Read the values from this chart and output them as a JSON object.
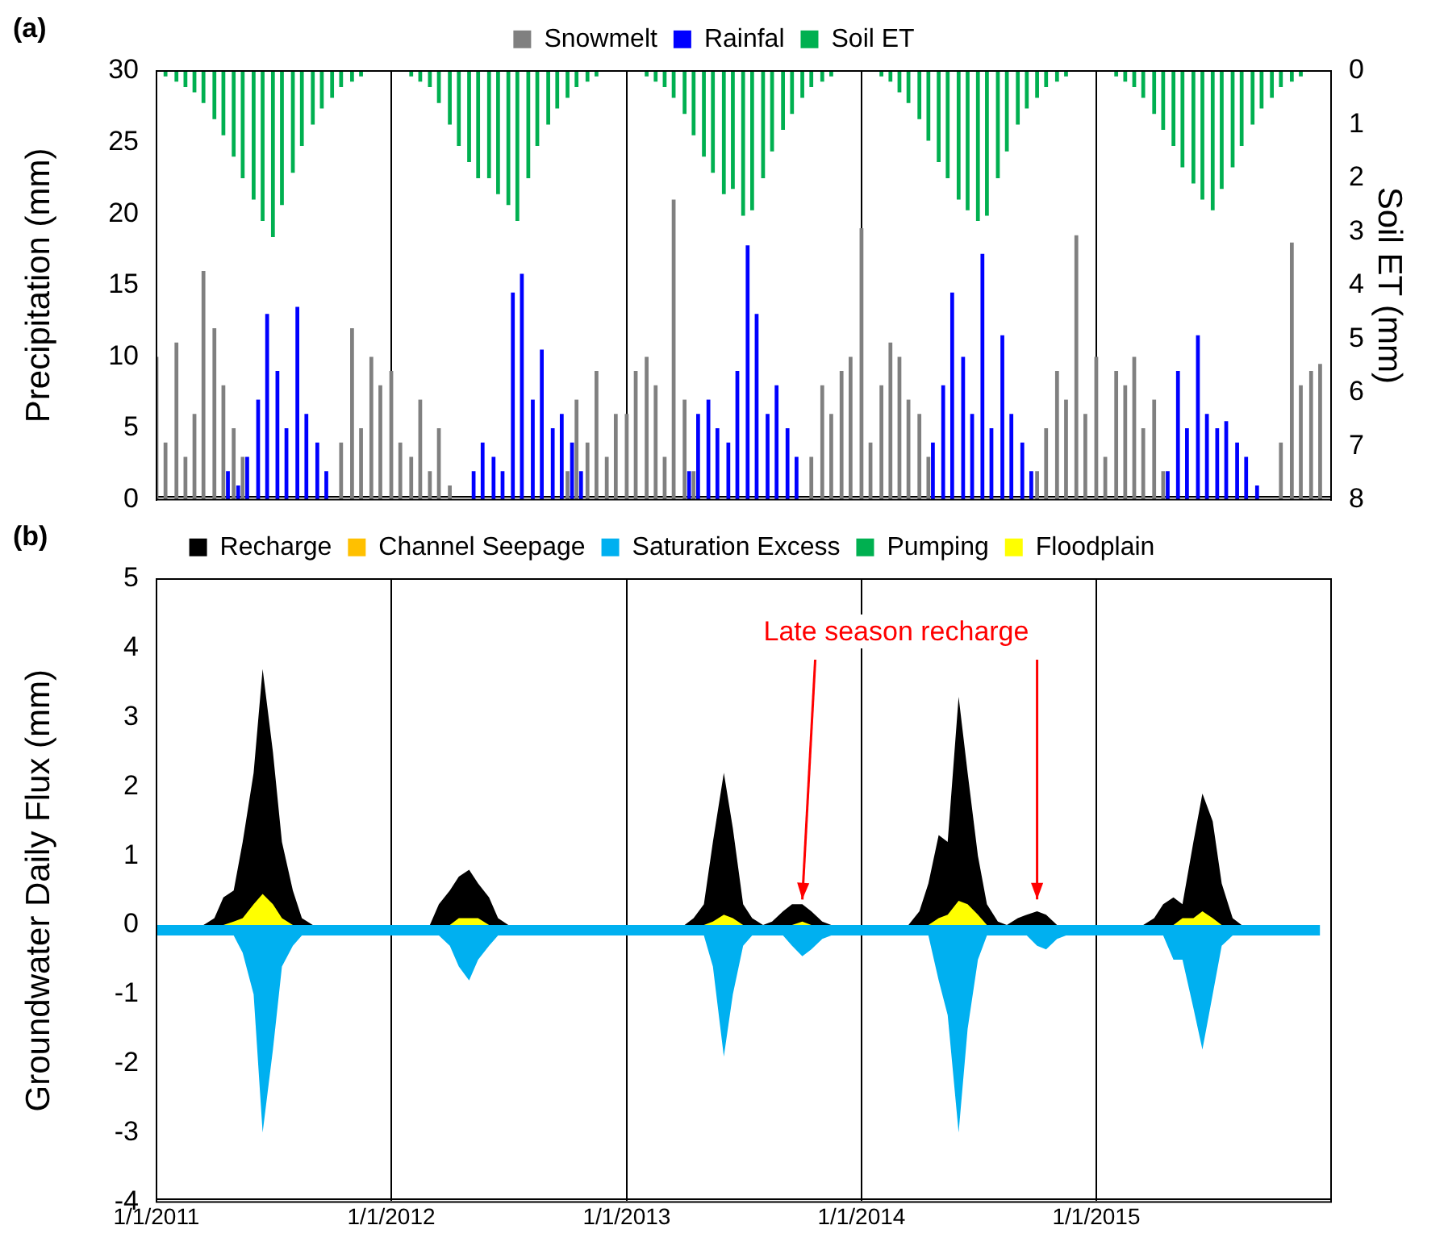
{
  "chart_data": [
    {
      "type": "bar",
      "title": "(a)",
      "ylabel": "Precipitation (mm)",
      "y2label": "Soil ET (mm)",
      "legend": "top",
      "grid": "x",
      "tick_labels": "y",
      "x": [
        "2011-01-01",
        "2011-01-15",
        "2011-02-01",
        "2011-02-15",
        "2011-03-01",
        "2011-03-15",
        "2011-04-01",
        "2011-04-15",
        "2011-05-01",
        "2011-05-15",
        "2011-06-01",
        "2011-06-15",
        "2011-07-01",
        "2011-07-15",
        "2011-08-01",
        "2011-08-15",
        "2011-09-01",
        "2011-09-15",
        "2011-10-01",
        "2011-10-15",
        "2011-11-01",
        "2011-11-15",
        "2011-12-01",
        "2011-12-15",
        "2012-01-01",
        "2012-01-15",
        "2012-02-01",
        "2012-02-15",
        "2012-03-01",
        "2012-03-15",
        "2012-04-01",
        "2012-04-15",
        "2012-05-01",
        "2012-05-15",
        "2012-06-01",
        "2012-06-15",
        "2012-07-01",
        "2012-07-15",
        "2012-08-01",
        "2012-08-15",
        "2012-09-01",
        "2012-09-15",
        "2012-10-01",
        "2012-10-15",
        "2012-11-01",
        "2012-11-15",
        "2012-12-01",
        "2012-12-15",
        "2013-01-01",
        "2013-01-15",
        "2013-02-01",
        "2013-02-15",
        "2013-03-01",
        "2013-03-15",
        "2013-04-01",
        "2013-04-15",
        "2013-05-01",
        "2013-05-15",
        "2013-06-01",
        "2013-06-15",
        "2013-07-01",
        "2013-07-15",
        "2013-08-01",
        "2013-08-15",
        "2013-09-01",
        "2013-09-15",
        "2013-10-01",
        "2013-10-15",
        "2013-11-01",
        "2013-11-15",
        "2013-12-01",
        "2013-12-15",
        "2014-01-01",
        "2014-01-15",
        "2014-02-01",
        "2014-02-15",
        "2014-03-01",
        "2014-03-15",
        "2014-04-01",
        "2014-04-15",
        "2014-05-01",
        "2014-05-15",
        "2014-06-01",
        "2014-06-15",
        "2014-07-01",
        "2014-07-15",
        "2014-08-01",
        "2014-08-15",
        "2014-09-01",
        "2014-09-15",
        "2014-10-01",
        "2014-10-15",
        "2014-11-01",
        "2014-11-15",
        "2014-12-01",
        "2014-12-15",
        "2015-01-01",
        "2015-01-15",
        "2015-02-01",
        "2015-02-15",
        "2015-03-01",
        "2015-03-15",
        "2015-04-01",
        "2015-04-15",
        "2015-05-01",
        "2015-05-15",
        "2015-06-01",
        "2015-06-15",
        "2015-07-01",
        "2015-07-15",
        "2015-08-01",
        "2015-08-15",
        "2015-09-01",
        "2015-09-15",
        "2015-10-01",
        "2015-10-15",
        "2015-11-01",
        "2015-11-15",
        "2015-12-01",
        "2015-12-15"
      ],
      "xlim": [
        "2011-01-01",
        "2016-01-01"
      ],
      "xticks": [
        {
          "value": "2011-01-01",
          "label": null
        },
        {
          "value": "2012-01-01",
          "label": null
        },
        {
          "value": "2013-01-01",
          "label": null
        },
        {
          "value": "2014-01-01",
          "label": null
        },
        {
          "value": "2015-01-01",
          "label": null
        }
      ],
      "ylim": [
        0,
        30
      ],
      "yticks": [
        0,
        5,
        10,
        15,
        20,
        25,
        30
      ],
      "y2lim": [
        8,
        0
      ],
      "y2ticks": [
        0,
        1,
        2,
        3,
        4,
        5,
        6,
        7,
        8
      ],
      "series": [
        {
          "name": "Snowmelt",
          "color": "#808080",
          "values": [
            10,
            4,
            11,
            3,
            6,
            16,
            12,
            8,
            5,
            3,
            0,
            0,
            0,
            0,
            0,
            0,
            0,
            0,
            0,
            4,
            12,
            5,
            10,
            8,
            9,
            4,
            3,
            7,
            2,
            5,
            1,
            0,
            0,
            0,
            0,
            0,
            0,
            0,
            0,
            0,
            0,
            0,
            2,
            7,
            4,
            9,
            3,
            6,
            6,
            9,
            10,
            8,
            3,
            21,
            7,
            2,
            0,
            0,
            0,
            0,
            0,
            0,
            0,
            0,
            0,
            0,
            0,
            3,
            8,
            6,
            9,
            10,
            19,
            4,
            8,
            11,
            10,
            7,
            6,
            3,
            0,
            0,
            0,
            0,
            0,
            0,
            0,
            0,
            0,
            0,
            2,
            5,
            9,
            7,
            18.5,
            6,
            10,
            3,
            9,
            8,
            10,
            5,
            7,
            2,
            0,
            0,
            0,
            0,
            0,
            0,
            0,
            0,
            0,
            0,
            0,
            4,
            18,
            8,
            9,
            9.5
          ]
        },
        {
          "name": "Rainfal",
          "color": "#0000ff",
          "x": [
            "2011-01-08",
            "2011-01-22",
            "2011-02-08",
            "2011-02-22",
            "2011-03-08",
            "2011-03-22",
            "2011-04-08",
            "2011-04-22",
            "2011-05-08",
            "2011-05-22",
            "2011-06-08",
            "2011-06-22",
            "2011-07-08",
            "2011-07-22",
            "2011-08-08",
            "2011-08-22",
            "2011-09-08",
            "2011-09-22",
            "2011-10-08",
            "2011-10-22",
            "2011-11-08",
            "2011-11-22",
            "2011-12-08",
            "2011-12-22",
            "2012-01-08",
            "2012-01-22",
            "2012-02-08",
            "2012-02-22",
            "2012-03-08",
            "2012-03-22",
            "2012-04-08",
            "2012-04-22",
            "2012-05-08",
            "2012-05-22",
            "2012-06-08",
            "2012-06-22",
            "2012-07-08",
            "2012-07-22",
            "2012-08-08",
            "2012-08-22",
            "2012-09-08",
            "2012-09-22",
            "2012-10-08",
            "2012-10-22",
            "2012-11-08",
            "2012-11-22",
            "2012-12-08",
            "2012-12-22",
            "2013-01-08",
            "2013-01-22",
            "2013-02-08",
            "2013-02-22",
            "2013-03-08",
            "2013-03-22",
            "2013-04-08",
            "2013-04-22",
            "2013-05-08",
            "2013-05-22",
            "2013-06-08",
            "2013-06-22",
            "2013-07-08",
            "2013-07-22",
            "2013-08-08",
            "2013-08-22",
            "2013-09-08",
            "2013-09-22",
            "2013-10-08",
            "2013-10-22",
            "2013-11-08",
            "2013-11-22",
            "2013-12-08",
            "2013-12-22",
            "2014-01-08",
            "2014-01-22",
            "2014-02-08",
            "2014-02-22",
            "2014-03-08",
            "2014-03-22",
            "2014-04-08",
            "2014-04-22",
            "2014-05-08",
            "2014-05-22",
            "2014-06-08",
            "2014-06-22",
            "2014-07-08",
            "2014-07-22",
            "2014-08-08",
            "2014-08-22",
            "2014-09-08",
            "2014-09-22",
            "2014-10-08",
            "2014-10-22",
            "2014-11-08",
            "2014-11-22",
            "2014-12-08",
            "2014-12-22",
            "2015-01-08",
            "2015-01-22",
            "2015-02-08",
            "2015-02-22",
            "2015-03-08",
            "2015-03-22",
            "2015-04-08",
            "2015-04-22",
            "2015-05-08",
            "2015-05-22",
            "2015-06-08",
            "2015-06-22",
            "2015-07-08",
            "2015-07-22",
            "2015-08-08",
            "2015-08-22",
            "2015-09-08",
            "2015-09-22",
            "2015-10-08",
            "2015-10-22",
            "2015-11-08",
            "2015-11-22",
            "2015-12-08",
            "2015-12-22"
          ],
          "values": [
            0,
            0,
            0,
            0,
            0,
            0,
            0,
            2,
            1,
            3,
            7,
            13,
            9,
            5,
            13.5,
            6,
            4,
            2,
            0,
            0,
            0,
            0,
            0,
            0,
            0,
            0,
            0,
            0,
            0,
            0,
            0,
            0,
            2,
            4,
            3,
            2,
            14.5,
            15.8,
            7,
            10.5,
            5,
            6,
            4,
            2,
            0,
            0,
            0,
            0,
            0,
            0,
            0,
            0,
            0,
            0,
            2,
            6,
            7,
            5,
            4,
            9,
            17.8,
            13,
            6,
            8,
            5,
            3,
            0,
            0,
            0,
            0,
            0,
            0,
            0,
            0,
            0,
            0,
            0,
            0,
            0,
            4,
            8,
            14.5,
            10,
            6,
            17.2,
            5,
            11.5,
            6,
            4,
            2,
            0,
            0,
            0,
            0,
            0,
            0,
            0,
            0,
            0,
            0,
            0,
            0,
            0,
            2,
            9,
            5,
            11.5,
            6,
            5,
            5.5,
            4,
            3,
            1,
            0,
            0,
            0,
            0,
            0,
            0,
            0
          ]
        },
        {
          "name": "Soil ET",
          "color": "#00b050",
          "axis": "y2",
          "values": [
            0,
            0.1,
            0.2,
            0.3,
            0.4,
            0.6,
            0.9,
            1.2,
            1.6,
            2.0,
            2.4,
            2.8,
            3.1,
            2.5,
            1.9,
            1.4,
            1.0,
            0.7,
            0.5,
            0.3,
            0.2,
            0.1,
            0,
            0,
            0,
            0,
            0.1,
            0.2,
            0.3,
            0.6,
            1.0,
            1.4,
            1.7,
            2.0,
            2.0,
            2.3,
            2.5,
            2.8,
            2.0,
            1.4,
            1.0,
            0.7,
            0.5,
            0.3,
            0.2,
            0.1,
            0,
            0,
            0,
            0,
            0.1,
            0.2,
            0.3,
            0.5,
            0.8,
            1.2,
            1.6,
            1.9,
            2.3,
            2.2,
            2.7,
            2.6,
            2.0,
            1.5,
            1.1,
            0.8,
            0.5,
            0.3,
            0.2,
            0.1,
            0,
            0,
            0,
            0,
            0.1,
            0.2,
            0.4,
            0.6,
            0.9,
            1.3,
            1.7,
            2.0,
            2.4,
            2.6,
            2.8,
            2.7,
            2.0,
            1.5,
            1.0,
            0.7,
            0.5,
            0.3,
            0.2,
            0.1,
            0,
            0,
            0,
            0,
            0.1,
            0.2,
            0.3,
            0.5,
            0.8,
            1.1,
            1.4,
            1.8,
            2.1,
            2.4,
            2.6,
            2.2,
            1.8,
            1.4,
            1.0,
            0.7,
            0.5,
            0.3,
            0.2,
            0.1,
            0,
            0
          ]
        }
      ]
    },
    {
      "type": "area",
      "title": "(b)",
      "ylabel": "Groundwater Daily Flux (mm)",
      "legend": "top",
      "grid": "x",
      "annotations": [
        {
          "text": "Late season recharge",
          "x": "2013-10-01",
          "y": 0.3
        }
      ],
      "x": [
        "2011-01-01",
        "2011-01-15",
        "2011-02-01",
        "2011-02-15",
        "2011-03-01",
        "2011-03-15",
        "2011-04-01",
        "2011-04-15",
        "2011-05-01",
        "2011-05-15",
        "2011-06-01",
        "2011-06-15",
        "2011-07-01",
        "2011-07-15",
        "2011-08-01",
        "2011-08-15",
        "2011-09-01",
        "2011-09-15",
        "2011-10-01",
        "2011-10-15",
        "2011-11-01",
        "2011-11-15",
        "2011-12-01",
        "2011-12-15",
        "2012-01-01",
        "2012-01-15",
        "2012-02-01",
        "2012-02-15",
        "2012-03-01",
        "2012-03-15",
        "2012-04-01",
        "2012-04-15",
        "2012-05-01",
        "2012-05-15",
        "2012-06-01",
        "2012-06-15",
        "2012-07-01",
        "2012-07-15",
        "2012-08-01",
        "2012-08-15",
        "2012-09-01",
        "2012-09-15",
        "2012-10-01",
        "2012-10-15",
        "2012-11-01",
        "2012-11-15",
        "2012-12-01",
        "2012-12-15",
        "2013-01-01",
        "2013-01-15",
        "2013-02-01",
        "2013-02-15",
        "2013-03-01",
        "2013-03-15",
        "2013-04-01",
        "2013-04-15",
        "2013-05-01",
        "2013-05-15",
        "2013-06-01",
        "2013-06-15",
        "2013-07-01",
        "2013-07-15",
        "2013-08-01",
        "2013-08-15",
        "2013-09-01",
        "2013-09-15",
        "2013-10-01",
        "2013-10-15",
        "2013-11-01",
        "2013-11-15",
        "2013-12-01",
        "2013-12-15",
        "2014-01-01",
        "2014-01-15",
        "2014-02-01",
        "2014-02-15",
        "2014-03-01",
        "2014-03-15",
        "2014-04-01",
        "2014-04-15",
        "2014-05-01",
        "2014-05-15",
        "2014-06-01",
        "2014-06-15",
        "2014-07-01",
        "2014-07-15",
        "2014-08-01",
        "2014-08-15",
        "2014-09-01",
        "2014-09-15",
        "2014-10-01",
        "2014-10-15",
        "2014-11-01",
        "2014-11-15",
        "2014-12-01",
        "2014-12-15",
        "2015-01-01",
        "2015-01-15",
        "2015-02-01",
        "2015-02-15",
        "2015-03-01",
        "2015-03-15",
        "2015-04-01",
        "2015-04-15",
        "2015-05-01",
        "2015-05-15",
        "2015-06-01",
        "2015-06-15",
        "2015-07-01",
        "2015-07-15",
        "2015-08-01",
        "2015-08-15",
        "2015-09-01",
        "2015-09-15",
        "2015-10-01",
        "2015-10-15",
        "2015-11-01",
        "2015-11-15",
        "2015-12-01",
        "2015-12-15"
      ],
      "xlim": [
        "2011-01-01",
        "2016-01-01"
      ],
      "xticks": [
        {
          "value": "2011-01-01",
          "label": "1/1/2011"
        },
        {
          "value": "2012-01-01",
          "label": "1/1/2012"
        },
        {
          "value": "2013-01-01",
          "label": "1/1/2013"
        },
        {
          "value": "2014-01-01",
          "label": "1/1/2014"
        },
        {
          "value": "2015-01-01",
          "label": "1/1/2015"
        },
        {
          "value": "2016-01-01",
          "label": null
        }
      ],
      "ylim": [
        -4,
        5
      ],
      "yticks": [
        -4,
        -3,
        -2,
        -1,
        0,
        1,
        2,
        3,
        4,
        5
      ],
      "series": [
        {
          "name": "Recharge",
          "color": "#000000",
          "values": [
            0,
            0,
            0,
            0,
            0,
            0,
            0.1,
            0.4,
            0.5,
            1.2,
            2.2,
            3.7,
            2.5,
            1.2,
            0.5,
            0.1,
            0,
            0,
            0,
            0,
            0,
            0,
            0,
            0,
            0,
            0,
            0,
            0,
            0,
            0.3,
            0.5,
            0.7,
            0.8,
            0.6,
            0.4,
            0.1,
            0,
            0,
            0,
            0,
            0,
            0,
            0,
            0,
            0,
            0,
            0,
            0,
            0,
            0,
            0,
            0,
            0,
            0,
            0,
            0.1,
            0.3,
            1.2,
            2.2,
            1.4,
            0.3,
            0.1,
            0,
            0.05,
            0.2,
            0.3,
            0.3,
            0.2,
            0.05,
            0,
            0,
            0,
            0,
            0,
            0,
            0,
            0,
            0,
            0.2,
            0.6,
            1.3,
            1.2,
            3.3,
            2.2,
            1.0,
            0.3,
            0.05,
            0,
            0.1,
            0.15,
            0.2,
            0.15,
            0,
            0,
            0,
            0,
            0,
            0,
            0,
            0,
            0,
            0,
            0.1,
            0.3,
            0.4,
            0.3,
            1.2,
            1.9,
            1.5,
            0.6,
            0.1,
            0,
            0,
            0,
            0,
            0,
            0,
            0,
            0,
            0
          ]
        },
        {
          "name": "Channel Seepage",
          "color": "#ffc000",
          "values": [
            null,
            null,
            null,
            null,
            null,
            null,
            null,
            null,
            null,
            null,
            null,
            null,
            null,
            null,
            null,
            null,
            null,
            null,
            null,
            null,
            null,
            null,
            null,
            null,
            null,
            null,
            null,
            null,
            null,
            null,
            null,
            null,
            null,
            null,
            null,
            null,
            null,
            null,
            null,
            null,
            null,
            null,
            null,
            null,
            null,
            null,
            null,
            null,
            null,
            null,
            null,
            null,
            null,
            null,
            null,
            null,
            null,
            null,
            null,
            null,
            null,
            null,
            null,
            null,
            null,
            null,
            null,
            null,
            null,
            null,
            null,
            null,
            null,
            null,
            null,
            null,
            null,
            null,
            null,
            null,
            null,
            null,
            null,
            null,
            null,
            null,
            null,
            null,
            null,
            null,
            null,
            null,
            null,
            null,
            null,
            null,
            null,
            null,
            null,
            null,
            null,
            null,
            null,
            null,
            null,
            null,
            null,
            null,
            null,
            null,
            null,
            null,
            null,
            null,
            null,
            null,
            null,
            null,
            null,
            null
          ]
        },
        {
          "name": "Saturation Excess",
          "color": "#00b0f0",
          "values": [
            -0.15,
            -0.15,
            -0.15,
            -0.15,
            -0.15,
            -0.15,
            -0.15,
            -0.15,
            -0.15,
            -0.4,
            -1.0,
            -3.0,
            -1.8,
            -0.6,
            -0.3,
            -0.15,
            -0.15,
            -0.15,
            -0.15,
            -0.15,
            -0.15,
            -0.15,
            -0.15,
            -0.15,
            -0.15,
            -0.15,
            -0.15,
            -0.15,
            -0.15,
            -0.15,
            -0.3,
            -0.6,
            -0.8,
            -0.5,
            -0.3,
            -0.15,
            -0.15,
            -0.15,
            -0.15,
            -0.15,
            -0.15,
            -0.15,
            -0.15,
            -0.15,
            -0.15,
            -0.15,
            -0.15,
            -0.15,
            -0.15,
            -0.15,
            -0.15,
            -0.15,
            -0.15,
            -0.15,
            -0.15,
            -0.15,
            -0.15,
            -0.6,
            -1.9,
            -1.0,
            -0.3,
            -0.15,
            -0.15,
            -0.15,
            -0.15,
            -0.3,
            -0.45,
            -0.35,
            -0.2,
            -0.15,
            -0.15,
            -0.15,
            -0.15,
            -0.15,
            -0.15,
            -0.15,
            -0.15,
            -0.15,
            -0.15,
            -0.15,
            -0.8,
            -1.3,
            -3.0,
            -1.5,
            -0.5,
            -0.15,
            -0.15,
            -0.15,
            -0.15,
            -0.15,
            -0.3,
            -0.35,
            -0.2,
            -0.15,
            -0.15,
            -0.15,
            -0.15,
            -0.15,
            -0.15,
            -0.15,
            -0.15,
            -0.15,
            -0.15,
            -0.15,
            -0.5,
            -0.5,
            -1.2,
            -1.8,
            -1.0,
            -0.3,
            -0.15,
            -0.15,
            -0.15,
            -0.15,
            -0.15,
            -0.15,
            -0.15,
            -0.15,
            -0.15,
            -0.15
          ]
        },
        {
          "name": "Pumping",
          "color": "#00b050",
          "values": [
            null,
            null,
            null,
            null,
            null,
            null,
            null,
            null,
            null,
            null,
            null,
            null,
            null,
            null,
            null,
            null,
            null,
            null,
            null,
            null,
            null,
            null,
            null,
            null,
            null,
            null,
            null,
            null,
            null,
            null,
            null,
            null,
            null,
            null,
            null,
            null,
            null,
            null,
            null,
            null,
            null,
            null,
            null,
            null,
            null,
            null,
            null,
            null,
            null,
            null,
            null,
            null,
            null,
            null,
            null,
            null,
            null,
            null,
            null,
            null,
            null,
            null,
            null,
            null,
            null,
            null,
            null,
            null,
            null,
            null,
            null,
            null,
            null,
            null,
            null,
            null,
            null,
            null,
            null,
            null,
            null,
            null,
            null,
            null,
            null,
            null,
            null,
            null,
            null,
            null,
            null,
            null,
            null,
            null,
            null,
            null,
            null,
            null,
            null,
            null,
            null,
            null,
            null,
            null,
            null,
            null,
            null,
            null,
            null,
            null,
            null,
            null,
            null,
            null,
            null,
            null,
            null,
            null,
            null,
            null
          ]
        },
        {
          "name": "Floodplain",
          "color": "#ffff00",
          "values": [
            0,
            0,
            0,
            0,
            0,
            0,
            0,
            0,
            0.05,
            0.1,
            0.3,
            0.45,
            0.3,
            0.1,
            0,
            0,
            0,
            0,
            0,
            0,
            0,
            0,
            0,
            0,
            0,
            0,
            0,
            0,
            0,
            0,
            0,
            0.1,
            0.1,
            0.1,
            0,
            0,
            0,
            0,
            0,
            0,
            0,
            0,
            0,
            0,
            0,
            0,
            0,
            0,
            0,
            0,
            0,
            0,
            0,
            0,
            0,
            0,
            0,
            0.05,
            0.15,
            0.1,
            0,
            0,
            0,
            0,
            0,
            0,
            0.05,
            0,
            0,
            0,
            0,
            0,
            0,
            0,
            0,
            0,
            0,
            0,
            0,
            0,
            0.1,
            0.15,
            0.35,
            0.3,
            0.15,
            0,
            0,
            0,
            0,
            0,
            0,
            0,
            0,
            0,
            0,
            0,
            0,
            0,
            0,
            0,
            0,
            0,
            0,
            0,
            0,
            0.1,
            0.1,
            0.2,
            0.1,
            0,
            0,
            0,
            0,
            0,
            0,
            0,
            0,
            0,
            0,
            0
          ]
        }
      ]
    }
  ]
}
